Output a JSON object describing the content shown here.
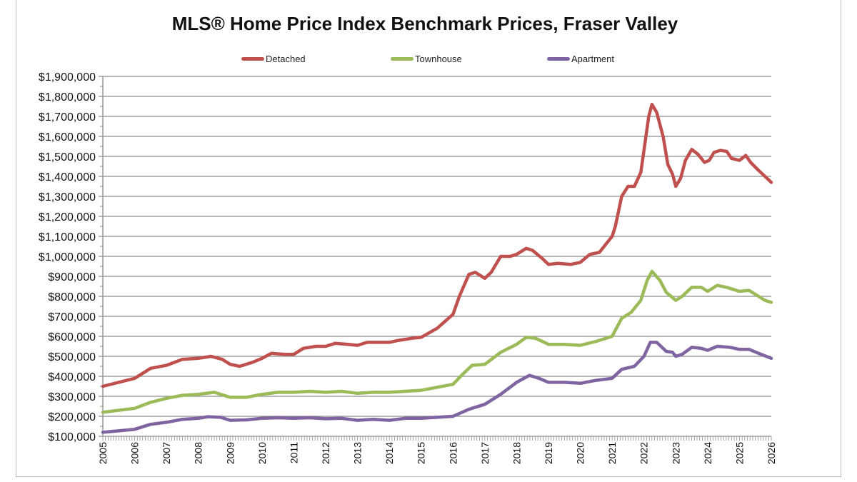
{
  "chart_data": {
    "type": "line",
    "title": "MLS® Home Price Index Benchmark Prices, Fraser Valley",
    "xlabel": "",
    "ylabel": "",
    "xlim": [
      2005,
      2026
    ],
    "ylim": [
      100000,
      1900000
    ],
    "x_ticks": [
      "2005",
      "2006",
      "2007",
      "2008",
      "2009",
      "2010",
      "2011",
      "2012",
      "2013",
      "2014",
      "2015",
      "2016",
      "2017",
      "2018",
      "2019",
      "2020",
      "2021",
      "2022",
      "2023",
      "2024",
      "2025",
      "2026"
    ],
    "y_ticks": [
      "$100,000",
      "$200,000",
      "$300,000",
      "$400,000",
      "$500,000",
      "$600,000",
      "$700,000",
      "$800,000",
      "$900,000",
      "$1,000,000",
      "$1,100,000",
      "$1,200,000",
      "$1,300,000",
      "$1,400,000",
      "$1,500,000",
      "$1,600,000",
      "$1,700,000",
      "$1,800,000",
      "$1,900,000"
    ],
    "grid": "horizontal",
    "legend_position": "top",
    "series": [
      {
        "name": "Detached",
        "color": "#c0504d",
        "points": [
          [
            2005,
            350000
          ],
          [
            2006,
            390000
          ],
          [
            2006.5,
            440000
          ],
          [
            2007,
            455000
          ],
          [
            2007.5,
            485000
          ],
          [
            2008,
            490000
          ],
          [
            2008.4,
            500000
          ],
          [
            2008.75,
            485000
          ],
          [
            2009,
            460000
          ],
          [
            2009.3,
            450000
          ],
          [
            2009.7,
            470000
          ],
          [
            2010,
            490000
          ],
          [
            2010.3,
            515000
          ],
          [
            2010.7,
            510000
          ],
          [
            2011,
            510000
          ],
          [
            2011.3,
            540000
          ],
          [
            2011.7,
            550000
          ],
          [
            2012,
            550000
          ],
          [
            2012.3,
            565000
          ],
          [
            2012.7,
            560000
          ],
          [
            2013,
            555000
          ],
          [
            2013.3,
            570000
          ],
          [
            2013.7,
            570000
          ],
          [
            2014,
            570000
          ],
          [
            2014.3,
            580000
          ],
          [
            2014.7,
            590000
          ],
          [
            2015,
            595000
          ],
          [
            2015.5,
            640000
          ],
          [
            2016,
            710000
          ],
          [
            2016.2,
            800000
          ],
          [
            2016.5,
            910000
          ],
          [
            2016.7,
            920000
          ],
          [
            2017,
            890000
          ],
          [
            2017.2,
            920000
          ],
          [
            2017.5,
            1000000
          ],
          [
            2017.8,
            1000000
          ],
          [
            2018,
            1010000
          ],
          [
            2018.3,
            1040000
          ],
          [
            2018.5,
            1030000
          ],
          [
            2018.8,
            990000
          ],
          [
            2019,
            960000
          ],
          [
            2019.3,
            965000
          ],
          [
            2019.7,
            960000
          ],
          [
            2020,
            970000
          ],
          [
            2020.3,
            1010000
          ],
          [
            2020.6,
            1020000
          ],
          [
            2021,
            1100000
          ],
          [
            2021.1,
            1150000
          ],
          [
            2021.3,
            1300000
          ],
          [
            2021.5,
            1350000
          ],
          [
            2021.7,
            1350000
          ],
          [
            2021.9,
            1420000
          ],
          [
            2022,
            1530000
          ],
          [
            2022.15,
            1700000
          ],
          [
            2022.25,
            1760000
          ],
          [
            2022.4,
            1720000
          ],
          [
            2022.6,
            1600000
          ],
          [
            2022.75,
            1460000
          ],
          [
            2022.9,
            1410000
          ],
          [
            2023,
            1350000
          ],
          [
            2023.15,
            1390000
          ],
          [
            2023.3,
            1480000
          ],
          [
            2023.5,
            1535000
          ],
          [
            2023.7,
            1510000
          ],
          [
            2023.9,
            1470000
          ],
          [
            2024.05,
            1480000
          ],
          [
            2024.2,
            1520000
          ],
          [
            2024.4,
            1530000
          ],
          [
            2024.6,
            1525000
          ],
          [
            2024.75,
            1490000
          ],
          [
            2025,
            1480000
          ],
          [
            2025.2,
            1505000
          ],
          [
            2025.35,
            1470000
          ],
          [
            2025.6,
            1430000
          ],
          [
            2025.8,
            1400000
          ],
          [
            2026,
            1370000
          ]
        ]
      },
      {
        "name": "Townhouse",
        "color": "#9bbb59",
        "points": [
          [
            2005,
            220000
          ],
          [
            2006,
            240000
          ],
          [
            2006.5,
            270000
          ],
          [
            2007,
            290000
          ],
          [
            2007.5,
            305000
          ],
          [
            2008,
            310000
          ],
          [
            2008.5,
            320000
          ],
          [
            2009,
            295000
          ],
          [
            2009.5,
            295000
          ],
          [
            2010,
            310000
          ],
          [
            2010.5,
            320000
          ],
          [
            2011,
            320000
          ],
          [
            2011.5,
            325000
          ],
          [
            2012,
            320000
          ],
          [
            2012.5,
            325000
          ],
          [
            2013,
            315000
          ],
          [
            2013.5,
            320000
          ],
          [
            2014,
            320000
          ],
          [
            2014.5,
            325000
          ],
          [
            2015,
            330000
          ],
          [
            2015.5,
            345000
          ],
          [
            2016,
            360000
          ],
          [
            2016.3,
            410000
          ],
          [
            2016.6,
            455000
          ],
          [
            2017,
            460000
          ],
          [
            2017.5,
            520000
          ],
          [
            2018,
            560000
          ],
          [
            2018.3,
            595000
          ],
          [
            2018.6,
            590000
          ],
          [
            2019,
            560000
          ],
          [
            2019.5,
            560000
          ],
          [
            2020,
            555000
          ],
          [
            2020.5,
            575000
          ],
          [
            2021,
            600000
          ],
          [
            2021.3,
            690000
          ],
          [
            2021.6,
            720000
          ],
          [
            2021.9,
            780000
          ],
          [
            2022.1,
            880000
          ],
          [
            2022.25,
            925000
          ],
          [
            2022.5,
            880000
          ],
          [
            2022.7,
            820000
          ],
          [
            2023,
            780000
          ],
          [
            2023.2,
            800000
          ],
          [
            2023.5,
            845000
          ],
          [
            2023.8,
            845000
          ],
          [
            2024,
            825000
          ],
          [
            2024.3,
            855000
          ],
          [
            2024.6,
            845000
          ],
          [
            2024.8,
            835000
          ],
          [
            2025,
            825000
          ],
          [
            2025.3,
            830000
          ],
          [
            2025.6,
            800000
          ],
          [
            2025.8,
            780000
          ],
          [
            2026,
            770000
          ]
        ]
      },
      {
        "name": "Apartment",
        "color": "#8064a2",
        "points": [
          [
            2005,
            120000
          ],
          [
            2006,
            135000
          ],
          [
            2006.5,
            160000
          ],
          [
            2007,
            170000
          ],
          [
            2007.5,
            185000
          ],
          [
            2008,
            190000
          ],
          [
            2008.3,
            198000
          ],
          [
            2008.7,
            195000
          ],
          [
            2009,
            180000
          ],
          [
            2009.5,
            182000
          ],
          [
            2010,
            190000
          ],
          [
            2010.5,
            193000
          ],
          [
            2011,
            190000
          ],
          [
            2011.5,
            193000
          ],
          [
            2012,
            188000
          ],
          [
            2012.5,
            190000
          ],
          [
            2013,
            180000
          ],
          [
            2013.5,
            185000
          ],
          [
            2014,
            180000
          ],
          [
            2014.5,
            190000
          ],
          [
            2015,
            190000
          ],
          [
            2015.5,
            195000
          ],
          [
            2016,
            200000
          ],
          [
            2016.5,
            235000
          ],
          [
            2017,
            260000
          ],
          [
            2017.5,
            310000
          ],
          [
            2018,
            370000
          ],
          [
            2018.4,
            405000
          ],
          [
            2018.7,
            390000
          ],
          [
            2019,
            370000
          ],
          [
            2019.5,
            370000
          ],
          [
            2020,
            365000
          ],
          [
            2020.5,
            380000
          ],
          [
            2021,
            390000
          ],
          [
            2021.3,
            435000
          ],
          [
            2021.7,
            450000
          ],
          [
            2022,
            500000
          ],
          [
            2022.2,
            570000
          ],
          [
            2022.4,
            570000
          ],
          [
            2022.7,
            525000
          ],
          [
            2022.9,
            520000
          ],
          [
            2023,
            500000
          ],
          [
            2023.2,
            510000
          ],
          [
            2023.5,
            545000
          ],
          [
            2023.8,
            540000
          ],
          [
            2024,
            530000
          ],
          [
            2024.3,
            550000
          ],
          [
            2024.7,
            545000
          ],
          [
            2025,
            535000
          ],
          [
            2025.3,
            535000
          ],
          [
            2025.6,
            515000
          ],
          [
            2026,
            490000
          ]
        ]
      }
    ]
  }
}
